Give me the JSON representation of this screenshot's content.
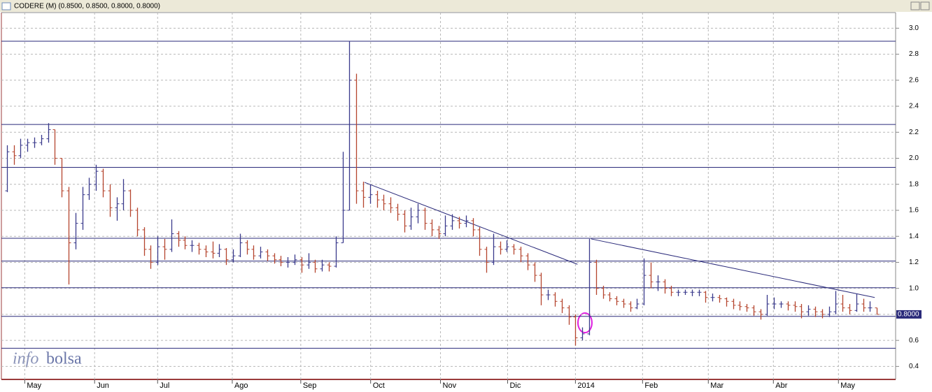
{
  "chart_data": {
    "type": "ohlc",
    "title": "CODERE (M) (0.8500, 0.8500, 0.8000, 0.8000)",
    "up_color": "#3a3a8c",
    "down_color": "#b5452e",
    "line_color": "#2a2a7a",
    "grid": true,
    "xlim": [
      0,
      128
    ],
    "xticks": [
      {
        "value": 3.1,
        "label": "May"
      },
      {
        "value": 13.3,
        "label": "Jun"
      },
      {
        "value": 22.5,
        "label": "Jul"
      },
      {
        "value": 33.4,
        "label": "Ago"
      },
      {
        "value": 43.4,
        "label": "Sep"
      },
      {
        "value": 53.6,
        "label": "Oct"
      },
      {
        "value": 63.8,
        "label": "Nov"
      },
      {
        "value": 73.6,
        "label": "Dic"
      },
      {
        "value": 83.5,
        "label": "2014"
      },
      {
        "value": 93.3,
        "label": "Feb"
      },
      {
        "value": 102.9,
        "label": "Mar"
      },
      {
        "value": 112.4,
        "label": "Abr"
      },
      {
        "value": 121.9,
        "label": "May"
      }
    ],
    "ylim": [
      0.3,
      3.12
    ],
    "yticks": [
      0.4,
      0.6,
      0.8,
      {
        "value": 1,
        "label": "1.0"
      },
      1.2,
      1.4,
      1.6,
      1.8,
      {
        "value": 2,
        "label": "2.0"
      },
      2.2,
      2.4,
      2.6,
      2.8,
      {
        "value": 3,
        "label": "3.0"
      }
    ],
    "hlines": [
      2.9,
      2.26,
      1.93,
      1.385,
      1.21,
      1.005,
      0.785,
      0.54
    ],
    "trendlines": [
      {
        "x": [
          52.7,
          83.8
        ],
        "y": [
          1.815,
          1.185
        ]
      },
      {
        "x": [
          85.8,
          127.2
        ],
        "y": [
          1.38,
          0.93
        ]
      }
    ],
    "last_price": {
      "value": 0.8,
      "label": "0.8000"
    },
    "logo": [
      "info",
      "bolsa"
    ],
    "ohlc": [
      [
        1.75,
        2.1,
        1.74,
        2.05
      ],
      [
        2.05,
        2.1,
        1.95,
        2.02
      ],
      [
        2.02,
        2.15,
        2.0,
        2.1
      ],
      [
        2.1,
        2.15,
        2.05,
        2.12
      ],
      [
        2.12,
        2.16,
        2.08,
        2.12
      ],
      [
        2.12,
        2.18,
        2.1,
        2.15
      ],
      [
        2.15,
        2.27,
        2.12,
        2.22
      ],
      [
        2.22,
        2.22,
        1.95,
        2.0
      ],
      [
        2.0,
        2.0,
        1.7,
        1.75
      ],
      [
        1.75,
        1.78,
        1.03,
        1.35
      ],
      [
        1.35,
        1.58,
        1.3,
        1.5
      ],
      [
        1.5,
        1.78,
        1.45,
        1.72
      ],
      [
        1.72,
        1.85,
        1.68,
        1.8
      ],
      [
        1.8,
        1.95,
        1.75,
        1.9
      ],
      [
        1.9,
        1.92,
        1.7,
        1.75
      ],
      [
        1.75,
        1.8,
        1.55,
        1.62
      ],
      [
        1.62,
        1.7,
        1.52,
        1.65
      ],
      [
        1.65,
        1.84,
        1.6,
        1.75
      ],
      [
        1.75,
        1.76,
        1.55,
        1.6
      ],
      [
        1.6,
        1.62,
        1.4,
        1.45
      ],
      [
        1.45,
        1.47,
        1.25,
        1.3
      ],
      [
        1.3,
        1.33,
        1.15,
        1.2
      ],
      [
        1.2,
        1.4,
        1.18,
        1.32
      ],
      [
        1.32,
        1.38,
        1.22,
        1.3
      ],
      [
        1.3,
        1.53,
        1.28,
        1.42
      ],
      [
        1.42,
        1.44,
        1.32,
        1.37
      ],
      [
        1.37,
        1.4,
        1.3,
        1.33
      ],
      [
        1.33,
        1.37,
        1.28,
        1.33
      ],
      [
        1.33,
        1.35,
        1.26,
        1.3
      ],
      [
        1.3,
        1.33,
        1.24,
        1.28
      ],
      [
        1.28,
        1.36,
        1.23,
        1.27
      ],
      [
        1.27,
        1.34,
        1.24,
        1.3
      ],
      [
        1.3,
        1.31,
        1.18,
        1.22
      ],
      [
        1.22,
        1.3,
        1.2,
        1.25
      ],
      [
        1.25,
        1.42,
        1.24,
        1.35
      ],
      [
        1.35,
        1.37,
        1.26,
        1.3
      ],
      [
        1.3,
        1.33,
        1.22,
        1.25
      ],
      [
        1.25,
        1.32,
        1.23,
        1.28
      ],
      [
        1.28,
        1.3,
        1.21,
        1.25
      ],
      [
        1.25,
        1.27,
        1.19,
        1.22
      ],
      [
        1.22,
        1.25,
        1.17,
        1.2
      ],
      [
        1.2,
        1.24,
        1.16,
        1.2
      ],
      [
        1.2,
        1.26,
        1.18,
        1.22
      ],
      [
        1.22,
        1.24,
        1.12,
        1.18
      ],
      [
        1.18,
        1.27,
        1.15,
        1.2
      ],
      [
        1.2,
        1.22,
        1.12,
        1.15
      ],
      [
        1.15,
        1.22,
        1.13,
        1.18
      ],
      [
        1.18,
        1.2,
        1.13,
        1.17
      ],
      [
        1.17,
        1.4,
        1.16,
        1.35
      ],
      [
        1.35,
        2.05,
        1.35,
        1.6
      ],
      [
        1.6,
        2.9,
        1.6,
        2.6
      ],
      [
        2.6,
        2.65,
        1.65,
        1.75
      ],
      [
        1.75,
        1.82,
        1.62,
        1.7
      ],
      [
        1.7,
        1.8,
        1.65,
        1.72
      ],
      [
        1.72,
        1.75,
        1.62,
        1.68
      ],
      [
        1.68,
        1.72,
        1.6,
        1.65
      ],
      [
        1.65,
        1.7,
        1.58,
        1.62
      ],
      [
        1.62,
        1.65,
        1.52,
        1.57
      ],
      [
        1.57,
        1.6,
        1.43,
        1.48
      ],
      [
        1.48,
        1.62,
        1.45,
        1.55
      ],
      [
        1.55,
        1.65,
        1.5,
        1.6
      ],
      [
        1.6,
        1.62,
        1.45,
        1.5
      ],
      [
        1.5,
        1.53,
        1.4,
        1.45
      ],
      [
        1.45,
        1.48,
        1.38,
        1.42
      ],
      [
        1.42,
        1.56,
        1.4,
        1.48
      ],
      [
        1.48,
        1.57,
        1.45,
        1.52
      ],
      [
        1.52,
        1.55,
        1.46,
        1.5
      ],
      [
        1.5,
        1.56,
        1.47,
        1.52
      ],
      [
        1.52,
        1.54,
        1.4,
        1.45
      ],
      [
        1.45,
        1.47,
        1.25,
        1.3
      ],
      [
        1.3,
        1.32,
        1.12,
        1.2
      ],
      [
        1.2,
        1.42,
        1.18,
        1.32
      ],
      [
        1.32,
        1.36,
        1.26,
        1.3
      ],
      [
        1.3,
        1.37,
        1.28,
        1.32
      ],
      [
        1.32,
        1.34,
        1.26,
        1.3
      ],
      [
        1.3,
        1.32,
        1.2,
        1.25
      ],
      [
        1.25,
        1.27,
        1.14,
        1.18
      ],
      [
        1.18,
        1.2,
        1.05,
        1.1
      ],
      [
        1.1,
        1.12,
        0.87,
        0.95
      ],
      [
        0.95,
        0.99,
        0.91,
        0.95
      ],
      [
        0.95,
        0.97,
        0.86,
        0.9
      ],
      [
        0.9,
        0.92,
        0.81,
        0.85
      ],
      [
        0.85,
        0.87,
        0.72,
        0.78
      ],
      [
        0.78,
        0.8,
        0.56,
        0.62
      ],
      [
        0.62,
        0.7,
        0.6,
        0.65
      ],
      [
        0.65,
        1.38,
        0.64,
        1.2
      ],
      [
        1.2,
        1.22,
        0.95,
        1.0
      ],
      [
        1.0,
        1.02,
        0.92,
        0.95
      ],
      [
        0.95,
        0.97,
        0.9,
        0.92
      ],
      [
        0.92,
        0.94,
        0.87,
        0.9
      ],
      [
        0.9,
        0.92,
        0.85,
        0.88
      ],
      [
        0.88,
        0.9,
        0.82,
        0.85
      ],
      [
        0.85,
        0.92,
        0.84,
        0.88
      ],
      [
        0.88,
        1.23,
        0.87,
        1.1
      ],
      [
        1.1,
        1.2,
        1.0,
        1.05
      ],
      [
        1.05,
        1.1,
        0.98,
        1.05
      ],
      [
        1.05,
        1.07,
        0.96,
        1.0
      ],
      [
        1.0,
        1.02,
        0.94,
        0.97
      ],
      [
        0.97,
        0.99,
        0.94,
        0.97
      ],
      [
        0.97,
        0.99,
        0.95,
        0.97
      ],
      [
        0.97,
        0.99,
        0.94,
        0.97
      ],
      [
        0.97,
        0.99,
        0.94,
        0.97
      ],
      [
        0.97,
        0.98,
        0.89,
        0.93
      ],
      [
        0.93,
        0.96,
        0.9,
        0.93
      ],
      [
        0.93,
        0.95,
        0.89,
        0.92
      ],
      [
        0.92,
        0.93,
        0.86,
        0.9
      ],
      [
        0.9,
        0.92,
        0.84,
        0.87
      ],
      [
        0.87,
        0.9,
        0.83,
        0.86
      ],
      [
        0.86,
        0.88,
        0.82,
        0.85
      ],
      [
        0.85,
        0.87,
        0.79,
        0.82
      ],
      [
        0.82,
        0.84,
        0.76,
        0.8
      ],
      [
        0.8,
        0.95,
        0.79,
        0.88
      ],
      [
        0.88,
        0.93,
        0.84,
        0.88
      ],
      [
        0.88,
        0.9,
        0.85,
        0.88
      ],
      [
        0.88,
        0.9,
        0.83,
        0.87
      ],
      [
        0.87,
        0.9,
        0.82,
        0.86
      ],
      [
        0.86,
        0.88,
        0.77,
        0.82
      ],
      [
        0.82,
        0.87,
        0.79,
        0.84
      ],
      [
        0.84,
        0.86,
        0.78,
        0.82
      ],
      [
        0.82,
        0.84,
        0.77,
        0.8
      ],
      [
        0.8,
        0.86,
        0.78,
        0.82
      ],
      [
        0.82,
        0.98,
        0.8,
        0.88
      ],
      [
        0.88,
        0.95,
        0.82,
        0.85
      ],
      [
        0.85,
        0.88,
        0.8,
        0.83
      ],
      [
        0.83,
        0.96,
        0.82,
        0.88
      ],
      [
        0.88,
        0.92,
        0.82,
        0.85
      ],
      [
        0.85,
        0.9,
        0.82,
        0.85
      ],
      [
        0.85,
        0.85,
        0.8,
        0.8
      ]
    ]
  }
}
